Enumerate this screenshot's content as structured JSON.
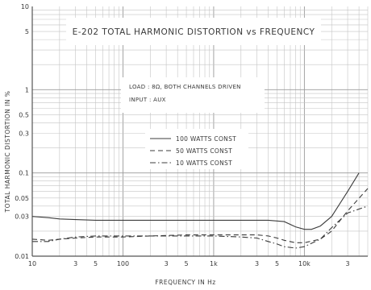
{
  "chart_data": {
    "type": "line",
    "title": "E-202   TOTAL HARMONIC DISTORTION vs FREQUENCY",
    "notes": [
      "LOAD : 8Ω, BOTH CHANNELS DRIVEN",
      "INPUT : AUX"
    ],
    "xlabel": "FREQUENCY IN Hz",
    "ylabel": "TOTAL HARMONIC DISTORTION IN %",
    "x_scale": "log",
    "y_scale": "log",
    "xlim": [
      10,
      50000
    ],
    "ylim": [
      0.01,
      10
    ],
    "grid": true,
    "legend_position": "center",
    "x_ticks": [
      {
        "value": 10,
        "label": "10"
      },
      {
        "value": 30,
        "label": "3"
      },
      {
        "value": 50,
        "label": "5"
      },
      {
        "value": 100,
        "label": "100"
      },
      {
        "value": 300,
        "label": "3"
      },
      {
        "value": 500,
        "label": "5"
      },
      {
        "value": 1000,
        "label": "1k"
      },
      {
        "value": 3000,
        "label": "3"
      },
      {
        "value": 5000,
        "label": "5"
      },
      {
        "value": 10000,
        "label": "10k"
      },
      {
        "value": 30000,
        "label": "3"
      }
    ],
    "y_ticks": [
      {
        "value": 10,
        "label": "10"
      },
      {
        "value": 5,
        "label": "5"
      },
      {
        "value": 1,
        "label": "1"
      },
      {
        "value": 0.5,
        "label": "0.5"
      },
      {
        "value": 0.3,
        "label": "0.3"
      },
      {
        "value": 0.1,
        "label": "0.1"
      },
      {
        "value": 0.05,
        "label": "0.05"
      },
      {
        "value": 0.03,
        "label": "0.03"
      },
      {
        "value": 0.01,
        "label": "0.01"
      }
    ],
    "series": [
      {
        "name": "100 WATTS CONST",
        "style": "solid",
        "x": [
          10,
          15,
          20,
          30,
          50,
          100,
          200,
          500,
          1000,
          2000,
          4000,
          6000,
          8000,
          10000,
          12000,
          15000,
          20000,
          30000,
          40000
        ],
        "y": [
          0.03,
          0.029,
          0.028,
          0.0275,
          0.027,
          0.027,
          0.027,
          0.027,
          0.027,
          0.027,
          0.027,
          0.026,
          0.0225,
          0.021,
          0.021,
          0.023,
          0.03,
          0.06,
          0.1
        ]
      },
      {
        "name": "50 WATTS CONST",
        "style": "dashed",
        "x": [
          10,
          15,
          20,
          30,
          50,
          100,
          200,
          500,
          1000,
          2000,
          3000,
          4000,
          5000,
          6000,
          8000,
          10000,
          15000,
          20000,
          30000,
          50000
        ],
        "y": [
          0.016,
          0.0155,
          0.016,
          0.0165,
          0.017,
          0.017,
          0.0175,
          0.018,
          0.018,
          0.018,
          0.018,
          0.0175,
          0.0165,
          0.0155,
          0.0145,
          0.0145,
          0.016,
          0.02,
          0.035,
          0.065
        ]
      },
      {
        "name": "10 WATTS CONST",
        "style": "dash-dot",
        "x": [
          10,
          15,
          20,
          30,
          50,
          100,
          200,
          500,
          1000,
          2000,
          3000,
          4000,
          5000,
          6000,
          8000,
          10000,
          15000,
          20000,
          30000,
          50000
        ],
        "y": [
          0.015,
          0.015,
          0.016,
          0.017,
          0.0175,
          0.0175,
          0.0175,
          0.0175,
          0.0175,
          0.017,
          0.0165,
          0.015,
          0.014,
          0.013,
          0.0125,
          0.013,
          0.016,
          0.022,
          0.033,
          0.04
        ]
      }
    ]
  }
}
